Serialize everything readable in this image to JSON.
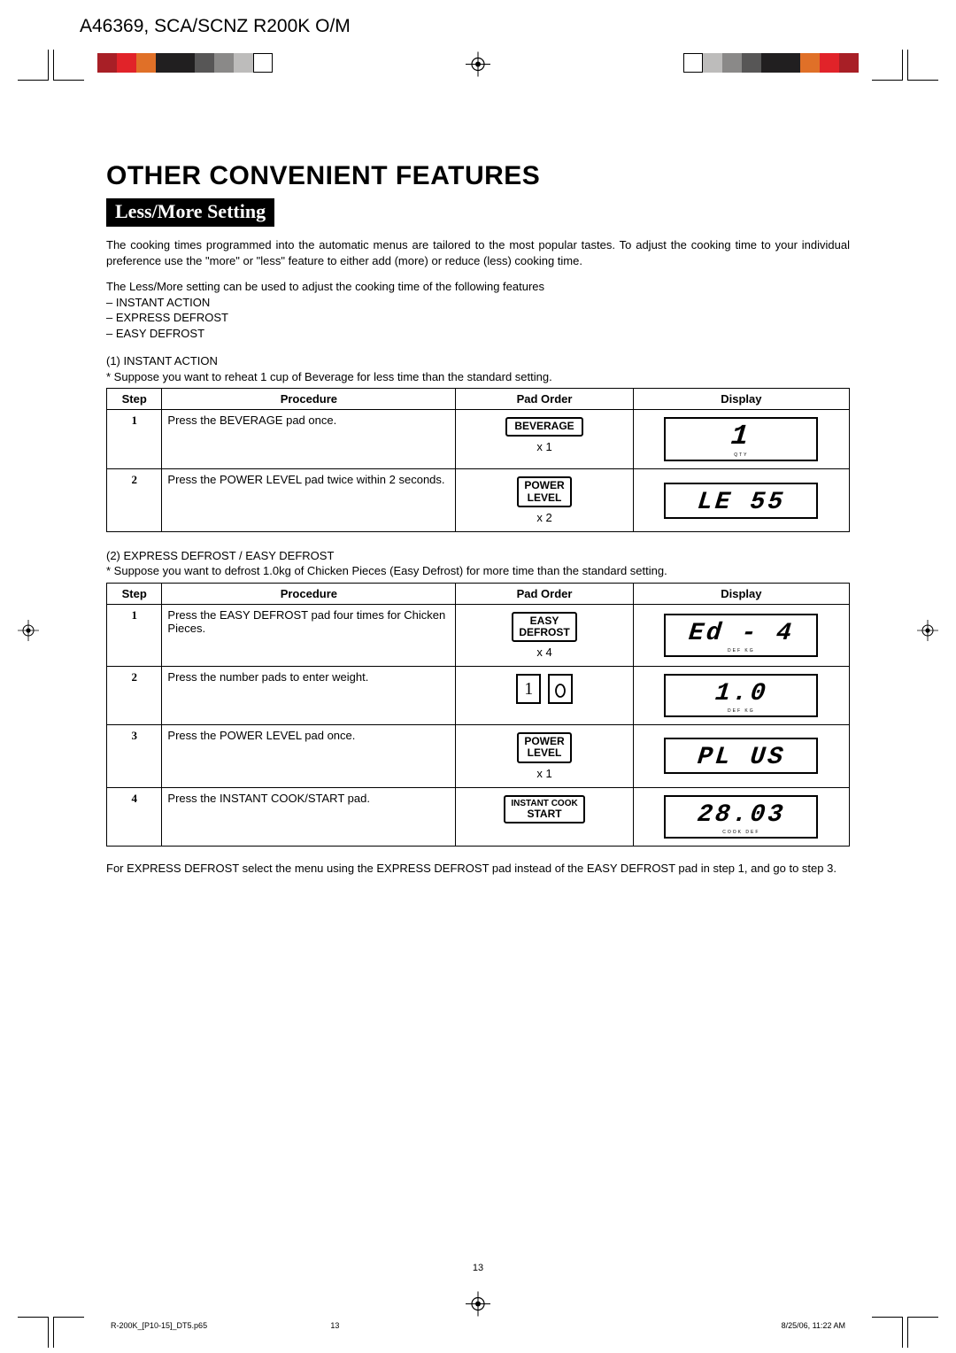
{
  "doc_id": "A46369, SCA/SCNZ R200K O/M",
  "colorbar_colors": [
    "#a81f26",
    "#e12329",
    "#e07028",
    "#211f20",
    "#211f20",
    "#575656",
    "#8a8988",
    "#bdbcbb",
    "#ffffff"
  ],
  "colorbar_colors_right": [
    "#ffffff",
    "#bdbcbb",
    "#8a8988",
    "#575656",
    "#211f20",
    "#211f20",
    "#e07028",
    "#e12329",
    "#a81f26"
  ],
  "title": "OTHER CONVENIENT FEATURES",
  "section_heading": "Less/More Setting",
  "intro_paragraph": "The cooking times programmed into the automatic menus are tailored to the most popular tastes. To adjust the cooking time to your individual preference use the \"more\" or \"less\" feature to either add (more) or reduce (less) cooking time.",
  "adjust_line": "The Less/More setting can be used to adjust the cooking time of the following features",
  "features": [
    "– INSTANT ACTION",
    "– EXPRESS DEFROST",
    "– EASY DEFROST"
  ],
  "ex1_title": "(1) INSTANT ACTION",
  "ex1_note": "* Suppose you want to reheat 1 cup of Beverage for less time than the standard setting.",
  "table_headers": {
    "step": "Step",
    "procedure": "Procedure",
    "pad": "Pad Order",
    "display": "Display"
  },
  "table1": [
    {
      "step": "1",
      "procedure": "Press the BEVERAGE pad once.",
      "pad_label": "BEVERAGE",
      "pad_count": "x 1",
      "display_main": "1",
      "display_sub": "QTY"
    },
    {
      "step": "2",
      "procedure": "Press the POWER LEVEL pad twice within 2 seconds.",
      "pad_label_line1": "POWER",
      "pad_label_line2": "LEVEL",
      "pad_count": "x 2",
      "display_main": "LE 55",
      "display_sub": ""
    }
  ],
  "ex2_title": "(2) EXPRESS DEFROST / EASY DEFROST",
  "ex2_note": "* Suppose you want to defrost 1.0kg of Chicken Pieces (Easy Defrost) for more time than the standard setting.",
  "table2": [
    {
      "step": "1",
      "procedure": "Press the EASY DEFROST pad four times for Chicken Pieces.",
      "pad_label_line1": "EASY",
      "pad_label_line2": "DEFROST",
      "pad_count": "x 4",
      "display_main": "Ed  - 4",
      "display_sub": "DEF   KG"
    },
    {
      "step": "2",
      "procedure": "Press the number pads to enter weight.",
      "pad_numpad": true,
      "display_main": "1.0",
      "display_sub": "DEF   KG"
    },
    {
      "step": "3",
      "procedure": "Press the POWER LEVEL pad once.",
      "pad_label_line1": "POWER",
      "pad_label_line2": "LEVEL",
      "pad_count": "x 1",
      "display_main": "PL US",
      "display_sub": ""
    },
    {
      "step": "4",
      "procedure": "Press the INSTANT COOK/START pad.",
      "pad_label_line1": "INSTANT COOK",
      "pad_label_line2": "START",
      "pad_count": "",
      "display_main": "28.03",
      "display_sub": "COOK   DEF"
    }
  ],
  "closing_note": "For EXPRESS DEFROST select the menu using the EXPRESS DEFROST pad instead of the EASY DEFROST pad in step 1, and go to step 3.",
  "page_number": "13",
  "footer_file": "R-200K_[P10-15]_DT5.p65",
  "footer_page": "13",
  "footer_date": "8/25/06, 11:22 AM"
}
